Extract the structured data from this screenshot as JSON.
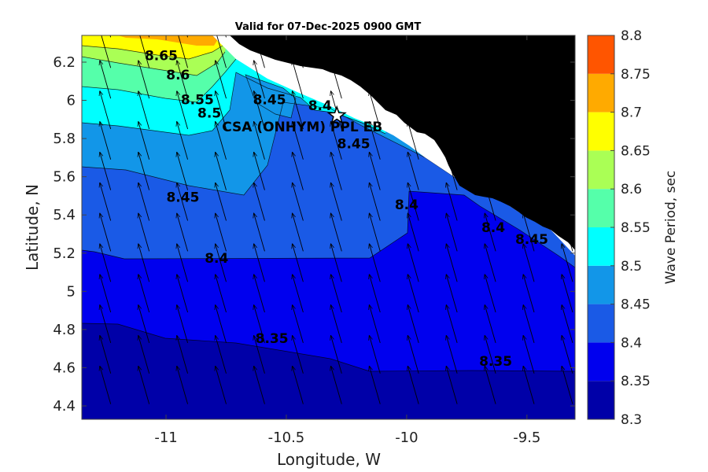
{
  "chart_data": {
    "type": "contour",
    "title": "Valid for 07-Dec-2025 0900 GMT",
    "xlabel": "Longitude, W",
    "ylabel": "Latitude, N",
    "xlim": [
      -11.35,
      -9.3
    ],
    "ylim": [
      4.33,
      6.34
    ],
    "x_ticks": [
      -11,
      -10.5,
      -10,
      -9.5
    ],
    "y_ticks": [
      4.4,
      4.6,
      4.8,
      5,
      5.2,
      5.4,
      5.6,
      5.8,
      6,
      6.2
    ],
    "colorbar": {
      "label": "Wave Period, sec",
      "range": [
        8.3,
        8.8
      ],
      "ticks": [
        8.3,
        8.35,
        8.4,
        8.45,
        8.5,
        8.55,
        8.6,
        8.65,
        8.7,
        8.75,
        8.8
      ],
      "colors": [
        "#0000a8",
        "#0000ee",
        "#1a5ae6",
        "#1296e8",
        "#00ffff",
        "#55ffaa",
        "#aaff55",
        "#ffff00",
        "#ffaa00",
        "#ff5500"
      ]
    },
    "land_color": "#000000",
    "coast_color": "#ffffff",
    "contour_labels": [
      {
        "text": "8.65",
        "lon": -11.02,
        "lat": 6.23
      },
      {
        "text": "8.6",
        "lon": -10.95,
        "lat": 6.13
      },
      {
        "text": "8.55",
        "lon": -10.87,
        "lat": 6.0
      },
      {
        "text": "8.5",
        "lon": -10.82,
        "lat": 5.93
      },
      {
        "text": "8.45",
        "lon": -10.57,
        "lat": 6.0
      },
      {
        "text": "8.4",
        "lon": -10.36,
        "lat": 5.97
      },
      {
        "text": "8.45",
        "lon": -10.22,
        "lat": 5.77
      },
      {
        "text": "8.45",
        "lon": -10.93,
        "lat": 5.49
      },
      {
        "text": "8.4",
        "lon": -10.0,
        "lat": 5.45
      },
      {
        "text": "8.4",
        "lon": -9.64,
        "lat": 5.33
      },
      {
        "text": "8.45",
        "lon": -9.48,
        "lat": 5.27
      },
      {
        "text": "8.4",
        "lon": -10.79,
        "lat": 5.17
      },
      {
        "text": "8.35",
        "lon": -10.56,
        "lat": 4.75
      },
      {
        "text": "8.35",
        "lon": -9.63,
        "lat": 4.63
      }
    ],
    "station": {
      "name": "CSA (ONHYM) PPL EB",
      "lon": -10.29,
      "lat": 5.92
    },
    "vector_direction": "north-northwest",
    "grid": false
  }
}
